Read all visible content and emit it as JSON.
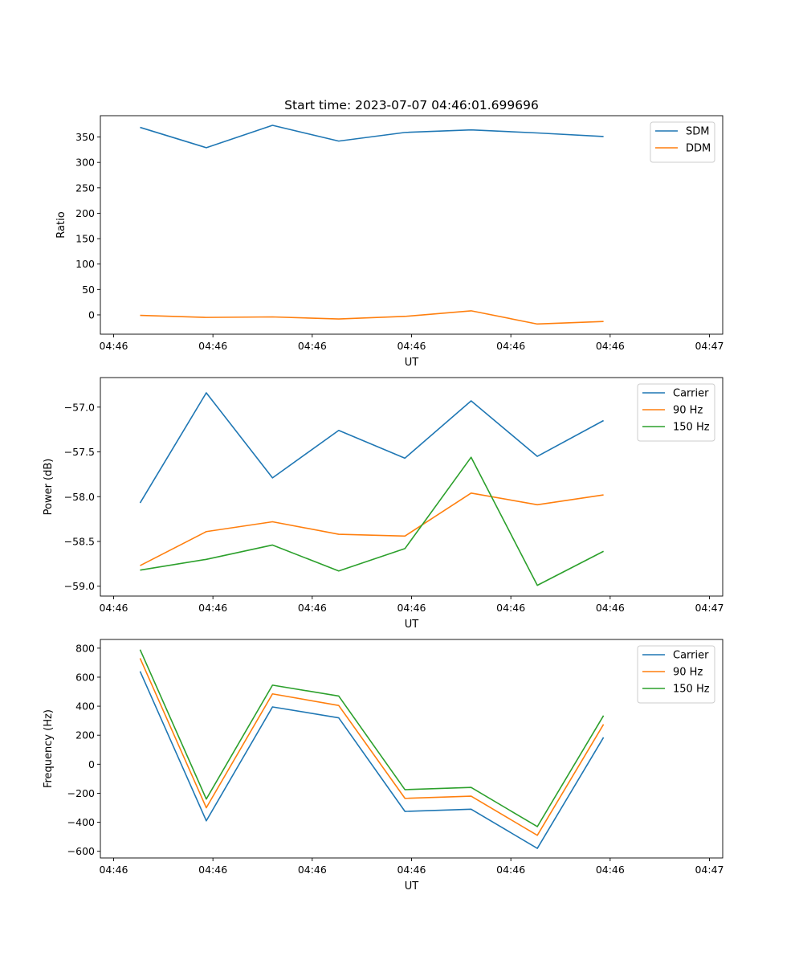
{
  "figure_title": "Start time: 2023-07-07 04:46:01.699696",
  "chart_data": [
    {
      "type": "line",
      "id": "ratio",
      "title": "Start time: 2023-07-07 04:46:01.699696",
      "xlabel": "UT",
      "ylabel": "Ratio",
      "xlim": [
        -0.6,
        8.8
      ],
      "ylim": [
        -38,
        392
      ],
      "x_ticks": [
        -0.4,
        1.1,
        2.6,
        4.1,
        5.6,
        7.1,
        8.6
      ],
      "x_tick_labels": [
        "04:46",
        "04:46",
        "04:46",
        "04:46",
        "04:46",
        "04:46",
        "04:47"
      ],
      "y_ticks": [
        0,
        50,
        100,
        150,
        200,
        250,
        300,
        350
      ],
      "y_tick_labels": [
        "0",
        "50",
        "100",
        "150",
        "200",
        "250",
        "300",
        "350"
      ],
      "legend_position": "upper right",
      "x": [
        0,
        1,
        2,
        3,
        4,
        5,
        6,
        7
      ],
      "series": [
        {
          "name": "SDM",
          "color": "#1f77b4",
          "values": [
            369,
            329,
            373,
            342,
            359,
            364,
            358,
            351
          ]
        },
        {
          "name": "DDM",
          "color": "#ff7f0e",
          "values": [
            -1,
            -5,
            -4,
            -8,
            -3,
            8,
            -18,
            -13
          ]
        }
      ]
    },
    {
      "type": "line",
      "id": "power",
      "title": "",
      "xlabel": "UT",
      "ylabel": "Power (dB)",
      "xlim": [
        -0.6,
        8.8
      ],
      "ylim": [
        -59.11,
        -56.67
      ],
      "x_ticks": [
        -0.4,
        1.1,
        2.6,
        4.1,
        5.6,
        7.1,
        8.6
      ],
      "x_tick_labels": [
        "04:46",
        "04:46",
        "04:46",
        "04:46",
        "04:46",
        "04:46",
        "04:47"
      ],
      "y_ticks": [
        -59.0,
        -58.5,
        -58.0,
        -57.5,
        -57.0
      ],
      "y_tick_labels": [
        "−59.0",
        "−58.5",
        "−58.0",
        "−57.5",
        "−57.0"
      ],
      "legend_position": "upper right",
      "x": [
        0,
        1,
        2,
        3,
        4,
        5,
        6,
        7
      ],
      "series": [
        {
          "name": "Carrier",
          "color": "#1f77b4",
          "values": [
            -58.07,
            -56.84,
            -57.79,
            -57.26,
            -57.57,
            -56.93,
            -57.55,
            -57.15
          ]
        },
        {
          "name": "90 Hz",
          "color": "#ff7f0e",
          "values": [
            -58.77,
            -58.39,
            -58.28,
            -58.42,
            -58.44,
            -57.96,
            -58.09,
            -57.98
          ]
        },
        {
          "name": "150 Hz",
          "color": "#2ca02c",
          "values": [
            -58.82,
            -58.7,
            -58.54,
            -58.83,
            -58.58,
            -57.56,
            -58.99,
            -58.61
          ]
        }
      ]
    },
    {
      "type": "line",
      "id": "frequency",
      "title": "",
      "xlabel": "UT",
      "ylabel": "Frequency (Hz)",
      "xlim": [
        -0.6,
        8.8
      ],
      "ylim": [
        -646,
        860
      ],
      "x_ticks": [
        -0.4,
        1.1,
        2.6,
        4.1,
        5.6,
        7.1,
        8.6
      ],
      "x_tick_labels": [
        "04:46",
        "04:46",
        "04:46",
        "04:46",
        "04:46",
        "04:46",
        "04:47"
      ],
      "y_ticks": [
        -600,
        -400,
        -200,
        0,
        200,
        400,
        600,
        800
      ],
      "y_tick_labels": [
        "−600",
        "−400",
        "−200",
        "0",
        "200",
        "400",
        "600",
        "800"
      ],
      "legend_position": "upper right",
      "x": [
        0,
        1,
        2,
        3,
        4,
        5,
        6,
        7
      ],
      "series": [
        {
          "name": "Carrier",
          "color": "#1f77b4",
          "values": [
            640,
            -390,
            395,
            320,
            -325,
            -310,
            -580,
            185
          ]
        },
        {
          "name": "90 Hz",
          "color": "#ff7f0e",
          "values": [
            730,
            -300,
            485,
            405,
            -235,
            -220,
            -490,
            275
          ]
        },
        {
          "name": "150 Hz",
          "color": "#2ca02c",
          "values": [
            790,
            -240,
            545,
            470,
            -175,
            -160,
            -430,
            335
          ]
        }
      ]
    }
  ]
}
